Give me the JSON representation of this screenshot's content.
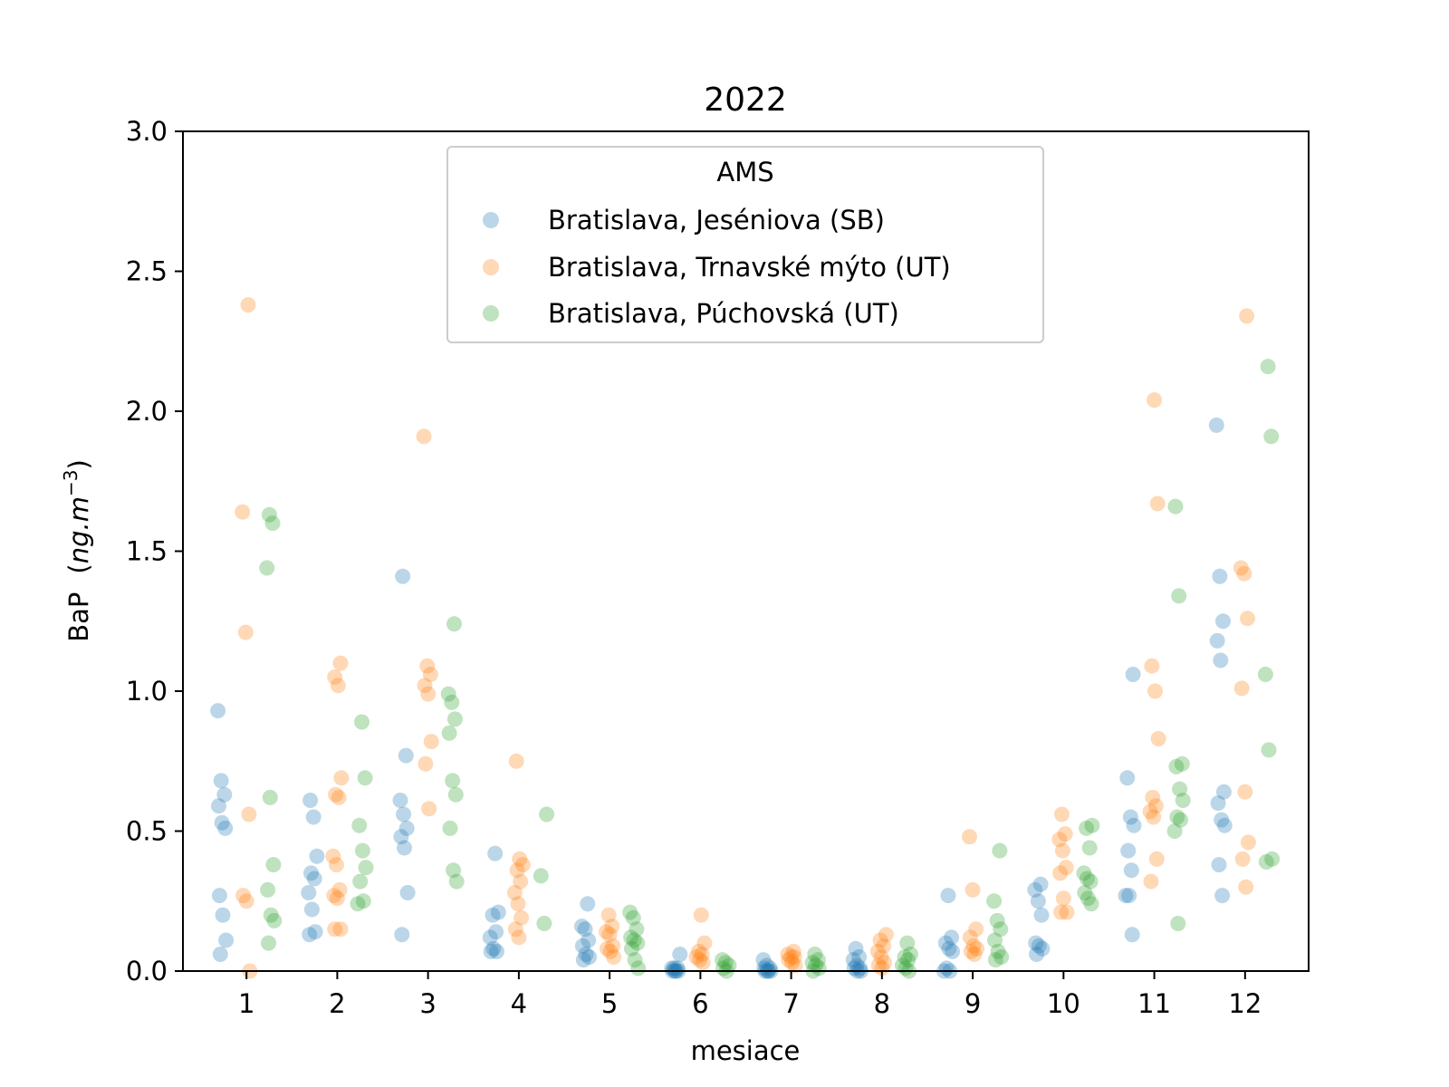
{
  "chart_data": {
    "type": "scatter",
    "title": "2022",
    "xlabel": "mesiace",
    "ylabel_main": "BaP",
    "ylabel_unit_base": "ng.m",
    "ylabel_unit_exp": "−3",
    "ylim": [
      0,
      3.0
    ],
    "y_ticks": [
      "0.0",
      "0.5",
      "1.0",
      "1.5",
      "2.0",
      "2.5",
      "3.0"
    ],
    "categories": [
      "1",
      "2",
      "3",
      "4",
      "5",
      "6",
      "7",
      "8",
      "9",
      "10",
      "11",
      "12"
    ],
    "grid": false,
    "legend": {
      "title": "AMS",
      "placement": "upper-center"
    },
    "series": [
      {
        "name": "Bratislava, Jeséniova (SB)",
        "color": "#1f77b4",
        "offset": -0.27,
        "values": [
          [
            0.93,
            0.68,
            0.63,
            0.59,
            0.53,
            0.51,
            0.27,
            0.2,
            0.11,
            0.06
          ],
          [
            0.61,
            0.55,
            0.41,
            0.35,
            0.33,
            0.28,
            0.22,
            0.14,
            0.13
          ],
          [
            1.41,
            0.77,
            0.61,
            0.56,
            0.51,
            0.48,
            0.44,
            0.28,
            0.13
          ],
          [
            0.42,
            0.21,
            0.2,
            0.14,
            0.12,
            0.08,
            0.07,
            0.07
          ],
          [
            0.24,
            0.16,
            0.15,
            0.11,
            0.09,
            0.06,
            0.05,
            0.04
          ],
          [
            0.06,
            0.01,
            0.01,
            0.01,
            0.0,
            0.0,
            0.0,
            0.0
          ],
          [
            0.04,
            0.02,
            0.01,
            0.01,
            0.0,
            0.0,
            0.0,
            0.0
          ],
          [
            0.08,
            0.05,
            0.04,
            0.02,
            0.01,
            0.01,
            0.0,
            0.0
          ],
          [
            0.27,
            0.12,
            0.1,
            0.08,
            0.07,
            0.01,
            0.0,
            0.0
          ],
          [
            0.31,
            0.29,
            0.25,
            0.2,
            0.1,
            0.09,
            0.08,
            0.06
          ],
          [
            1.06,
            0.69,
            0.55,
            0.52,
            0.43,
            0.36,
            0.27,
            0.27,
            0.13
          ],
          [
            1.95,
            1.41,
            1.25,
            1.18,
            1.11,
            0.64,
            0.6,
            0.54,
            0.52,
            0.38,
            0.27
          ]
        ]
      },
      {
        "name": "Bratislava, Trnavské mýto (UT)",
        "color": "#ff7f0e",
        "offset": 0.0,
        "values": [
          [
            2.38,
            1.64,
            1.21,
            0.56,
            0.27,
            0.25,
            0.0
          ],
          [
            1.1,
            1.05,
            1.02,
            0.69,
            0.63,
            0.62,
            0.41,
            0.38,
            0.29,
            0.27,
            0.26,
            0.15,
            0.15
          ],
          [
            1.91,
            1.09,
            1.06,
            1.02,
            0.99,
            0.82,
            0.74,
            0.58
          ],
          [
            0.75,
            0.4,
            0.38,
            0.36,
            0.32,
            0.28,
            0.24,
            0.19,
            0.15,
            0.12
          ],
          [
            0.2,
            0.16,
            0.14,
            0.13,
            0.09,
            0.08,
            0.07,
            0.05
          ],
          [
            0.2,
            0.1,
            0.07,
            0.06,
            0.05,
            0.04,
            0.03
          ],
          [
            0.07,
            0.06,
            0.05,
            0.05,
            0.04,
            0.03,
            0.02
          ],
          [
            0.13,
            0.11,
            0.09,
            0.07,
            0.05,
            0.03,
            0.02,
            0.01
          ],
          [
            0.48,
            0.29,
            0.15,
            0.12,
            0.09,
            0.08,
            0.07,
            0.06
          ],
          [
            0.56,
            0.49,
            0.47,
            0.43,
            0.37,
            0.35,
            0.26,
            0.21,
            0.21
          ],
          [
            2.04,
            1.67,
            1.09,
            1.0,
            0.83,
            0.62,
            0.59,
            0.57,
            0.55,
            0.4,
            0.32
          ],
          [
            2.34,
            1.44,
            1.42,
            1.26,
            1.01,
            0.64,
            0.46,
            0.4,
            0.3
          ]
        ]
      },
      {
        "name": "Bratislava, Púchovská (UT)",
        "color": "#2ca02c",
        "offset": 0.27,
        "values": [
          [
            1.63,
            1.6,
            1.44,
            0.62,
            0.38,
            0.29,
            0.2,
            0.18,
            0.1
          ],
          [
            0.89,
            0.69,
            0.52,
            0.43,
            0.37,
            0.32,
            0.25,
            0.24
          ],
          [
            1.24,
            0.99,
            0.96,
            0.9,
            0.85,
            0.68,
            0.63,
            0.51,
            0.36,
            0.32
          ],
          [
            0.56,
            0.34,
            0.17
          ],
          [
            0.21,
            0.19,
            0.15,
            0.12,
            0.11,
            0.1,
            0.08,
            0.04,
            0.01
          ],
          [
            0.04,
            0.03,
            0.02,
            0.01,
            0.0
          ],
          [
            0.06,
            0.04,
            0.03,
            0.02,
            0.01,
            0.0
          ],
          [
            0.1,
            0.06,
            0.05,
            0.04,
            0.02,
            0.01,
            0.0
          ],
          [
            0.43,
            0.25,
            0.18,
            0.15,
            0.11,
            0.07,
            0.05,
            0.04
          ],
          [
            0.52,
            0.51,
            0.44,
            0.35,
            0.33,
            0.32,
            0.28,
            0.26,
            0.24
          ],
          [
            1.66,
            1.34,
            0.74,
            0.73,
            0.65,
            0.61,
            0.55,
            0.54,
            0.5,
            0.17
          ],
          [
            2.16,
            1.91,
            1.06,
            0.79,
            0.4,
            0.39
          ]
        ]
      }
    ]
  }
}
